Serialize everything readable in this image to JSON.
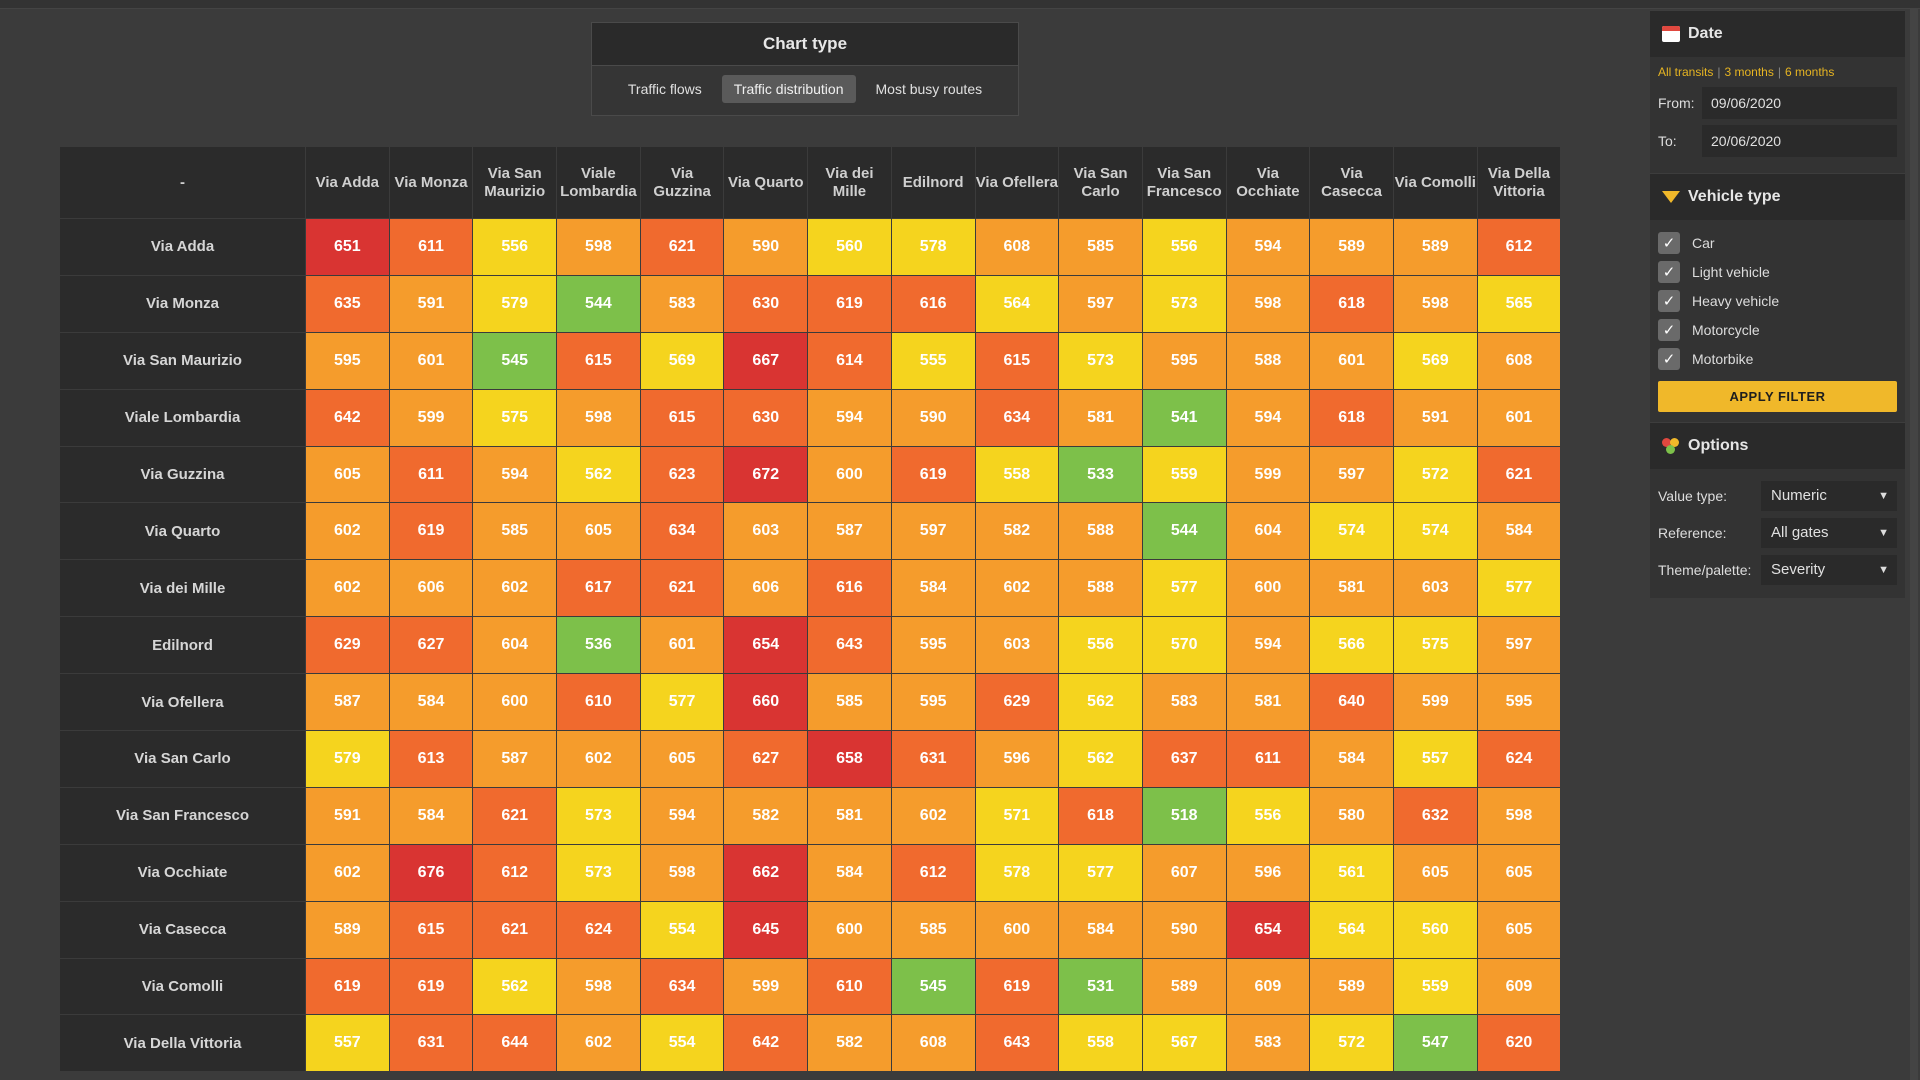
{
  "chart_type": {
    "title": "Chart type",
    "tabs": [
      {
        "label": "Traffic flows",
        "active": false
      },
      {
        "label": "Traffic distribution",
        "active": true
      },
      {
        "label": "Most busy routes",
        "active": false
      }
    ]
  },
  "chart_data": {
    "type": "heatmap",
    "corner_label": "-",
    "columns": [
      "Via Adda",
      "Via Monza",
      "Via San Maurizio",
      "Viale Lombardia",
      "Via Guzzina",
      "Via Quarto",
      "Via dei Mille",
      "Edilnord",
      "Via Ofellera",
      "Via San Carlo",
      "Via San Francesco",
      "Via Occhiate",
      "Via Casecca",
      "Via Comolli",
      "Via Della Vittoria"
    ],
    "rows": [
      "Via Adda",
      "Via Monza",
      "Via San Maurizio",
      "Viale Lombardia",
      "Via Guzzina",
      "Via Quarto",
      "Via dei Mille",
      "Edilnord",
      "Via Ofellera",
      "Via San Carlo",
      "Via San Francesco",
      "Via Occhiate",
      "Via Casecca",
      "Via Comolli",
      "Via Della Vittoria"
    ],
    "values": [
      [
        651,
        611,
        556,
        598,
        621,
        590,
        560,
        578,
        608,
        585,
        556,
        594,
        589,
        589,
        612
      ],
      [
        635,
        591,
        579,
        544,
        583,
        630,
        619,
        616,
        564,
        597,
        573,
        598,
        618,
        598,
        565
      ],
      [
        595,
        601,
        545,
        615,
        569,
        667,
        614,
        555,
        615,
        573,
        595,
        588,
        601,
        569,
        608
      ],
      [
        642,
        599,
        575,
        598,
        615,
        630,
        594,
        590,
        634,
        581,
        541,
        594,
        618,
        591,
        601
      ],
      [
        605,
        611,
        594,
        562,
        623,
        672,
        600,
        619,
        558,
        533,
        559,
        599,
        597,
        572,
        621
      ],
      [
        602,
        619,
        585,
        605,
        634,
        603,
        587,
        597,
        582,
        588,
        544,
        604,
        574,
        574,
        584
      ],
      [
        602,
        606,
        602,
        617,
        621,
        606,
        616,
        584,
        602,
        588,
        577,
        600,
        581,
        603,
        577
      ],
      [
        629,
        627,
        604,
        536,
        601,
        654,
        643,
        595,
        603,
        556,
        570,
        594,
        566,
        575,
        597
      ],
      [
        587,
        584,
        600,
        610,
        577,
        660,
        585,
        595,
        629,
        562,
        583,
        581,
        640,
        599,
        595
      ],
      [
        579,
        613,
        587,
        602,
        605,
        627,
        658,
        631,
        596,
        562,
        637,
        611,
        584,
        557,
        624
      ],
      [
        591,
        584,
        621,
        573,
        594,
        582,
        581,
        602,
        571,
        618,
        518,
        556,
        580,
        632,
        598
      ],
      [
        602,
        676,
        612,
        573,
        598,
        662,
        584,
        612,
        578,
        577,
        607,
        596,
        561,
        605,
        605
      ],
      [
        589,
        615,
        621,
        624,
        554,
        645,
        600,
        585,
        600,
        584,
        590,
        654,
        564,
        560,
        605
      ],
      [
        619,
        619,
        562,
        598,
        634,
        599,
        610,
        545,
        619,
        531,
        589,
        609,
        589,
        559,
        609
      ],
      [
        557,
        631,
        644,
        602,
        554,
        642,
        582,
        608,
        643,
        558,
        567,
        583,
        572,
        547,
        620
      ]
    ],
    "palette": {
      "green": "#7dc04a",
      "yellow": "#f5d41e",
      "orange": "#f59c2c",
      "dark_orange": "#f06a2e",
      "red": "#d93432"
    }
  },
  "sidebar": {
    "date": {
      "title": "Date",
      "quick_links": [
        "All transits",
        "3 months",
        "6 months"
      ],
      "from_label": "From:",
      "from_value": "09/06/2020",
      "to_label": "To:",
      "to_value": "20/06/2020"
    },
    "vehicle": {
      "title": "Vehicle type",
      "items": [
        "Car",
        "Light vehicle",
        "Heavy vehicle",
        "Motorcycle",
        "Motorbike"
      ],
      "apply_label": "APPLY FILTER"
    },
    "options": {
      "title": "Options",
      "value_type_label": "Value type:",
      "value_type": "Numeric",
      "reference_label": "Reference:",
      "reference": "All gates",
      "theme_label": "Theme/palette:",
      "theme": "Severity"
    }
  }
}
